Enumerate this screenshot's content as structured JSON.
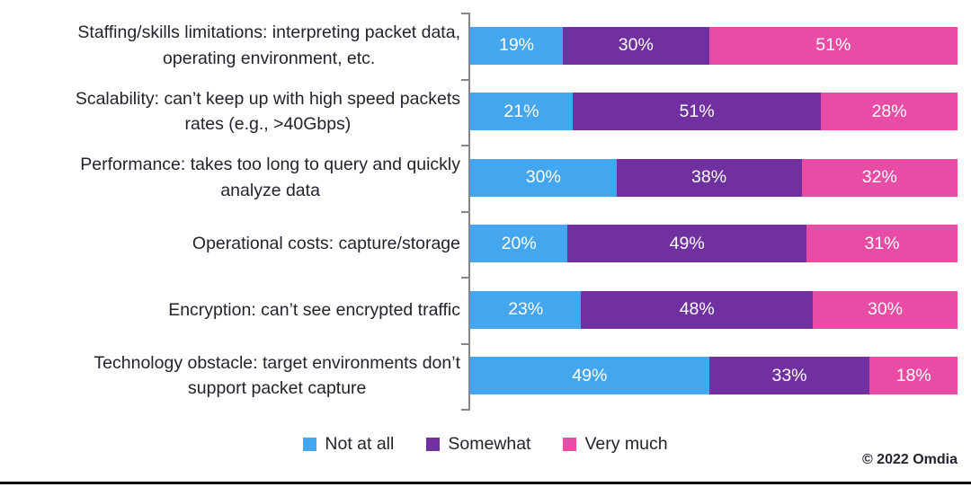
{
  "chart_data": {
    "type": "bar",
    "orientation": "horizontal",
    "stacked": true,
    "unit": "%",
    "xlim": [
      0,
      100
    ],
    "grid": false,
    "legend_position": "bottom-center",
    "value_labels": "inside-center-white",
    "categories": [
      "Staffing/skills limitations: interpreting packet data,\noperating environment, etc.",
      "Scalability: can’t keep up with high speed packets\nrates (e.g., >40Gbps)",
      "Performance: takes too long to query and quickly\nanalyze data",
      "Operational costs: capture/storage",
      "Encryption: can’t see encrypted traffic",
      "Technology obstacle: target environments don’t\nsupport packet capture"
    ],
    "series": [
      {
        "name": "Not at all",
        "color": "#44a6ee",
        "values": [
          19,
          21,
          30,
          20,
          23,
          49
        ]
      },
      {
        "name": "Somewhat",
        "color": "#7030a0",
        "values": [
          30,
          51,
          38,
          49,
          48,
          33
        ]
      },
      {
        "name": "Very much",
        "color": "#e94ca4",
        "values": [
          51,
          28,
          32,
          31,
          30,
          18
        ]
      }
    ]
  },
  "legend": {
    "items": [
      {
        "label": "Not at all",
        "color": "#44a6ee"
      },
      {
        "label": "Somewhat",
        "color": "#7030a0"
      },
      {
        "label": "Very much",
        "color": "#e94ca4"
      }
    ]
  },
  "footer": {
    "copyright": "© 2022 Omdia"
  },
  "style": {
    "axis_color": "#85858f",
    "label_color": "#23232d",
    "background": "#ffffff",
    "bottom_rule_color": "#000000"
  }
}
